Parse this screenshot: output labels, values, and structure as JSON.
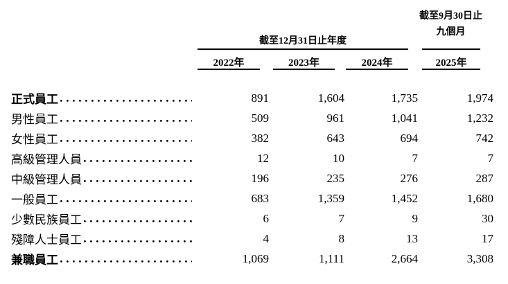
{
  "document": {
    "header": {
      "annual_group_title": "截至12月31日止年度",
      "interim_group_title_line1": "截至9月30日止",
      "interim_group_title_line2": "九個月",
      "years": [
        "2022年",
        "2023年",
        "2024年",
        "2025年"
      ]
    },
    "rows": [
      {
        "label": "正式員工",
        "values": [
          "891",
          "1,604",
          "1,735",
          "1,974"
        ]
      },
      {
        "label": "男性員工",
        "values": [
          "509",
          "961",
          "1,041",
          "1,232"
        ]
      },
      {
        "label": "女性員工",
        "values": [
          "382",
          "643",
          "694",
          "742"
        ]
      },
      {
        "label": "高級管理人員",
        "values": [
          "12",
          "10",
          "7",
          "7"
        ]
      },
      {
        "label": "中級管理人員",
        "values": [
          "196",
          "235",
          "276",
          "287"
        ]
      },
      {
        "label": "一般員工",
        "values": [
          "683",
          "1,359",
          "1,452",
          "1,680"
        ]
      },
      {
        "label": "少數民族員工",
        "values": [
          "6",
          "7",
          "9",
          "30"
        ]
      },
      {
        "label": "殘障人士員工",
        "values": [
          "4",
          "8",
          "13",
          "17"
        ]
      },
      {
        "label": "兼職員工",
        "values": [
          "1,069",
          "1,111",
          "2,664",
          "3,308"
        ]
      }
    ],
    "colors": {
      "text": "#000000",
      "rule": "#000000",
      "background": "#ffffff"
    }
  }
}
